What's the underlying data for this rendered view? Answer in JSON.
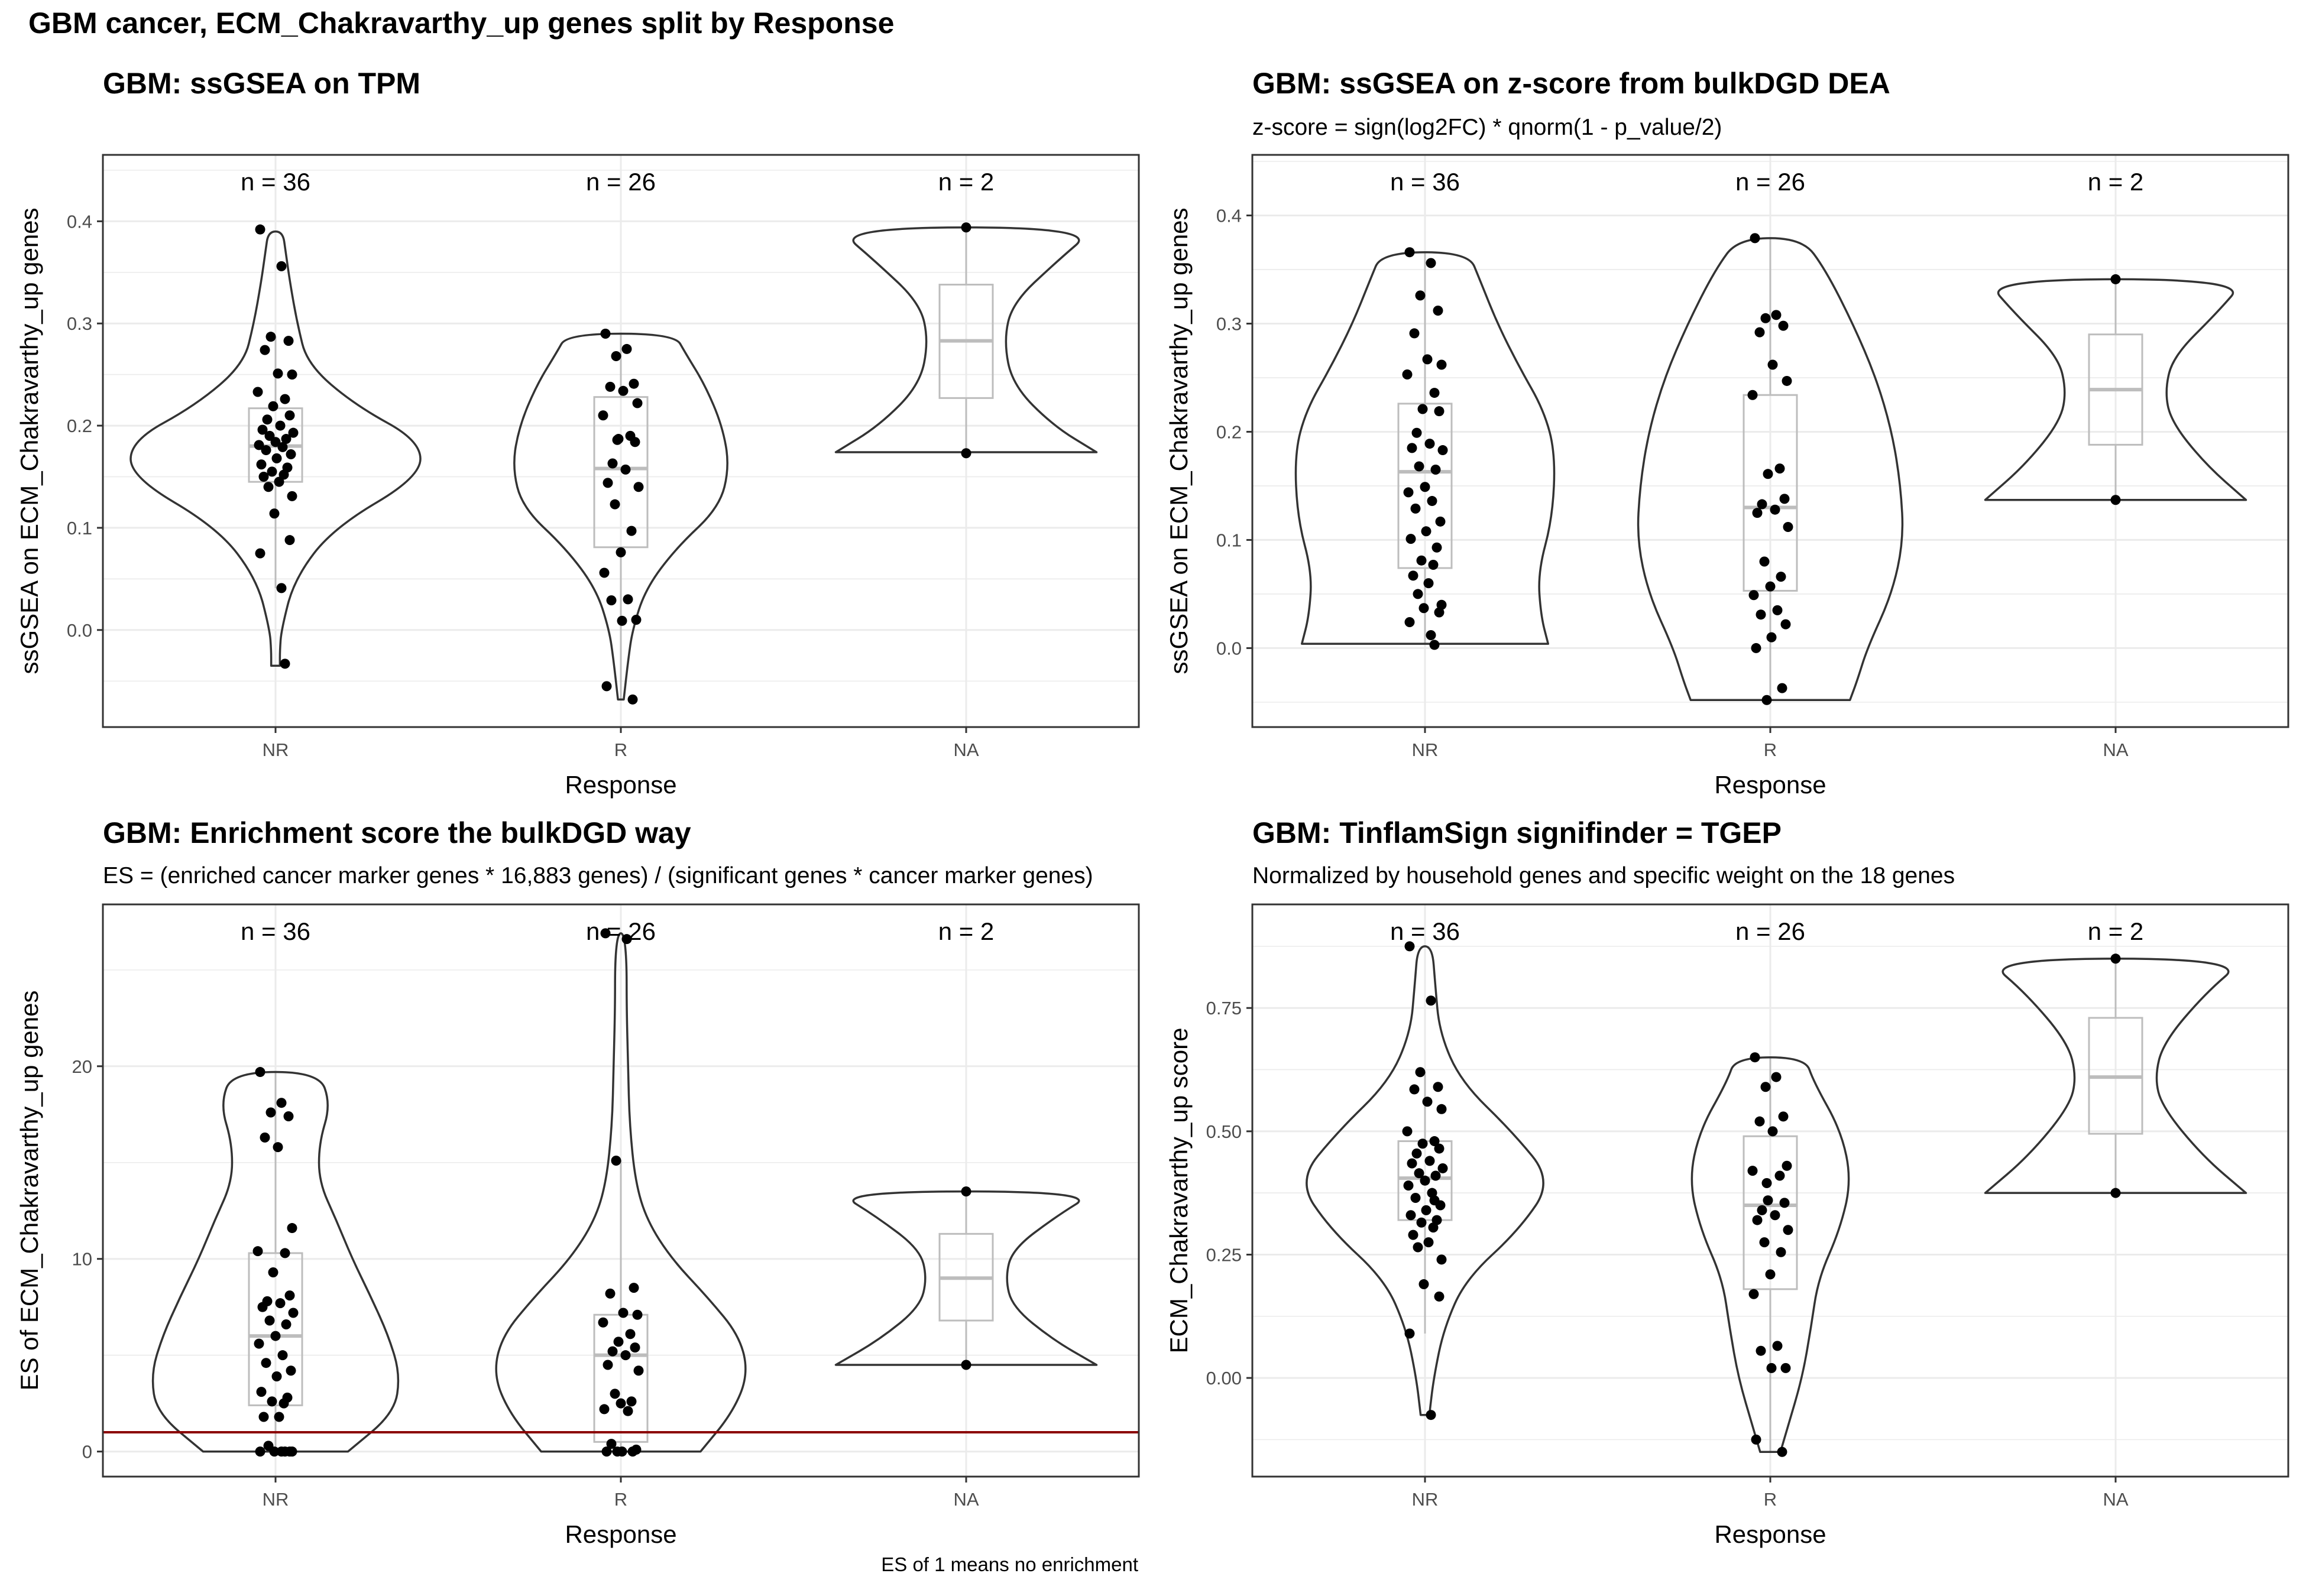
{
  "figure": {
    "title": "GBM cancer, ECM_Chakravarthy_up genes split by Response",
    "footnote": "ES of 1 means no enrichment"
  },
  "colors": {
    "point": "#000000",
    "violin": "#333333",
    "box": "#bdbdbd",
    "panel_border": "#333333",
    "grid_major": "#ebebeb",
    "reference_line": "#8b0000"
  },
  "chart_data": [
    {
      "type": "violin",
      "title": "GBM: ssGSEA on TPM",
      "subtitle": "",
      "xlabel": "Response",
      "ylabel": "ssGSEA on ECM_Chakravarthy_up genes",
      "categories": [
        "NR",
        "R",
        "NA"
      ],
      "counts": [
        "n = 36",
        "n = 26",
        "n = 2"
      ],
      "ylim": [
        -0.095,
        0.465
      ],
      "yticks": [
        0.0,
        0.1,
        0.2,
        0.3,
        0.4
      ],
      "ytick_labels": [
        "0.0",
        "0.1",
        "0.2",
        "0.3",
        "0.4"
      ],
      "grid": true,
      "box": [
        {
          "q1": 0.145,
          "median": 0.18,
          "q3": 0.217
        },
        {
          "q1": 0.081,
          "median": 0.158,
          "q3": 0.228
        },
        {
          "q1": 0.227,
          "median": 0.283,
          "q3": 0.338
        }
      ],
      "points": [
        [
          0.392,
          0.356,
          0.287,
          0.283,
          0.274,
          0.251,
          0.25,
          0.233,
          0.226,
          0.219,
          0.21,
          0.206,
          0.2,
          0.196,
          0.193,
          0.19,
          0.187,
          0.184,
          0.181,
          0.179,
          0.176,
          0.172,
          0.168,
          0.162,
          0.159,
          0.155,
          0.152,
          0.15,
          0.145,
          0.14,
          0.131,
          0.114,
          0.088,
          0.075,
          0.041,
          -0.033
        ],
        [
          0.29,
          0.275,
          0.268,
          0.241,
          0.238,
          0.234,
          0.222,
          0.21,
          0.19,
          0.187,
          0.184,
          0.163,
          0.157,
          0.144,
          0.14,
          0.123,
          0.097,
          0.076,
          0.056,
          0.03,
          0.029,
          0.01,
          0.009,
          -0.055,
          -0.068,
          0.186
        ],
        [
          0.394,
          0.173
        ]
      ],
      "violin_width": [
        [
          [
            -0.035,
            0.03
          ],
          [
            -0.02,
            0.03
          ],
          [
            0.0,
            0.04
          ],
          [
            0.05,
            0.13
          ],
          [
            0.1,
            0.4
          ],
          [
            0.15,
            1.0
          ],
          [
            0.185,
            1.0
          ],
          [
            0.22,
            0.55
          ],
          [
            0.26,
            0.22
          ],
          [
            0.3,
            0.15
          ],
          [
            0.34,
            0.1
          ],
          [
            0.37,
            0.07
          ],
          [
            0.39,
            0.05
          ]
        ],
        [
          [
            -0.068,
            0.02
          ],
          [
            -0.03,
            0.05
          ],
          [
            0.0,
            0.08
          ],
          [
            0.04,
            0.17
          ],
          [
            0.08,
            0.38
          ],
          [
            0.12,
            0.68
          ],
          [
            0.16,
            0.75
          ],
          [
            0.2,
            0.7
          ],
          [
            0.24,
            0.58
          ],
          [
            0.27,
            0.45
          ],
          [
            0.29,
            0.37
          ]
        ],
        [
          [
            0.174,
            0.9
          ],
          [
            0.2,
            0.6
          ],
          [
            0.24,
            0.32
          ],
          [
            0.283,
            0.26
          ],
          [
            0.32,
            0.32
          ],
          [
            0.36,
            0.62
          ],
          [
            0.394,
            0.9
          ]
        ]
      ],
      "reference_line": null
    },
    {
      "type": "violin",
      "title": "GBM: ssGSEA on z-score from bulkDGD DEA",
      "subtitle": "z-score = sign(log2FC) * qnorm(1 - p_value/2)",
      "xlabel": "Response",
      "ylabel": "ssGSEA on ECM_Chakravarthy_up genes",
      "categories": [
        "NR",
        "R",
        "NA"
      ],
      "counts": [
        "n = 36",
        "n = 26",
        "n = 2"
      ],
      "ylim": [
        -0.073,
        0.456
      ],
      "yticks": [
        0.0,
        0.1,
        0.2,
        0.3,
        0.4
      ],
      "ytick_labels": [
        "0.0",
        "0.1",
        "0.2",
        "0.3",
        "0.4"
      ],
      "grid": true,
      "box": [
        {
          "q1": 0.074,
          "median": 0.163,
          "q3": 0.226
        },
        {
          "q1": 0.053,
          "median": 0.13,
          "q3": 0.234
        },
        {
          "q1": 0.188,
          "median": 0.239,
          "q3": 0.29
        }
      ],
      "points": [
        [
          0.366,
          0.356,
          0.326,
          0.312,
          0.291,
          0.267,
          0.262,
          0.253,
          0.236,
          0.221,
          0.219,
          0.199,
          0.189,
          0.185,
          0.183,
          0.168,
          0.165,
          0.149,
          0.144,
          0.136,
          0.129,
          0.117,
          0.108,
          0.101,
          0.093,
          0.081,
          0.077,
          0.067,
          0.06,
          0.05,
          0.04,
          0.037,
          0.033,
          0.024,
          0.012,
          0.003
        ],
        [
          0.379,
          0.308,
          0.305,
          0.298,
          0.292,
          0.262,
          0.247,
          0.234,
          0.166,
          0.161,
          0.138,
          0.133,
          0.128,
          0.125,
          0.112,
          0.08,
          0.066,
          0.057,
          0.049,
          0.035,
          0.031,
          0.022,
          0.01,
          0.0,
          -0.037,
          -0.048
        ],
        [
          0.341,
          0.137
        ]
      ],
      "violin_width": [
        [
          [
            0.004,
            0.85
          ],
          [
            0.03,
            0.8
          ],
          [
            0.07,
            0.78
          ],
          [
            0.12,
            0.88
          ],
          [
            0.18,
            0.9
          ],
          [
            0.22,
            0.82
          ],
          [
            0.26,
            0.65
          ],
          [
            0.3,
            0.5
          ],
          [
            0.34,
            0.38
          ],
          [
            0.366,
            0.3
          ]
        ],
        [
          [
            -0.048,
            0.55
          ],
          [
            -0.03,
            0.6
          ],
          [
            0.0,
            0.67
          ],
          [
            0.05,
            0.84
          ],
          [
            0.1,
            0.92
          ],
          [
            0.15,
            0.9
          ],
          [
            0.2,
            0.84
          ],
          [
            0.25,
            0.73
          ],
          [
            0.3,
            0.57
          ],
          [
            0.35,
            0.38
          ],
          [
            0.379,
            0.22
          ]
        ],
        [
          [
            0.137,
            0.9
          ],
          [
            0.17,
            0.62
          ],
          [
            0.21,
            0.38
          ],
          [
            0.239,
            0.34
          ],
          [
            0.27,
            0.4
          ],
          [
            0.31,
            0.7
          ],
          [
            0.341,
            0.9
          ]
        ]
      ],
      "reference_line": null
    },
    {
      "type": "violin",
      "title": "GBM: Enrichment score the bulkDGD way",
      "subtitle": "ES = (enriched cancer marker genes * 16,883 genes) / (significant genes * cancer marker genes)",
      "xlabel": "Response",
      "ylabel": "ES of ECM_Chakravarthy_up genes",
      "categories": [
        "NR",
        "R",
        "NA"
      ],
      "counts": [
        "n = 36",
        "n = 26",
        "n = 2"
      ],
      "ylim": [
        -1.3,
        28.4
      ],
      "yticks": [
        0,
        10,
        20
      ],
      "ytick_labels": [
        "0",
        "10",
        "20"
      ],
      "grid": true,
      "box": [
        {
          "q1": 2.4,
          "median": 6.0,
          "q3": 10.3
        },
        {
          "q1": 0.5,
          "median": 5.0,
          "q3": 7.1
        },
        {
          "q1": 6.8,
          "median": 9.0,
          "q3": 11.3
        }
      ],
      "points": [
        [
          19.7,
          18.1,
          17.6,
          17.4,
          16.3,
          15.8,
          11.6,
          10.4,
          10.3,
          9.3,
          8.1,
          7.8,
          7.7,
          7.5,
          7.2,
          6.8,
          6.6,
          6.0,
          5.6,
          5.0,
          4.6,
          4.2,
          3.9,
          3.1,
          2.8,
          2.6,
          2.5,
          1.8,
          1.8,
          0.3,
          0.0,
          0.0,
          0.0,
          0.0,
          0.0,
          0.0
        ],
        [
          26.9,
          26.6,
          15.1,
          8.5,
          8.2,
          7.2,
          7.1,
          6.7,
          6.1,
          5.7,
          5.4,
          5.2,
          5.0,
          4.5,
          4.2,
          3.0,
          2.6,
          2.5,
          2.2,
          2.1,
          0.4,
          0.1,
          0.0,
          0.0,
          0.0,
          0.0
        ],
        [
          13.5,
          4.5
        ]
      ],
      "violin_width": [
        [
          [
            0.0,
            0.5
          ],
          [
            2.0,
            0.82
          ],
          [
            4.0,
            0.86
          ],
          [
            6.0,
            0.78
          ],
          [
            8.0,
            0.66
          ],
          [
            10.0,
            0.53
          ],
          [
            12.0,
            0.42
          ],
          [
            14.0,
            0.3
          ],
          [
            16.0,
            0.3
          ],
          [
            18.0,
            0.38
          ],
          [
            19.7,
            0.3
          ]
        ],
        [
          [
            0.0,
            0.55
          ],
          [
            2.0,
            0.77
          ],
          [
            4.0,
            0.88
          ],
          [
            6.0,
            0.82
          ],
          [
            8.0,
            0.6
          ],
          [
            10.0,
            0.35
          ],
          [
            12.0,
            0.18
          ],
          [
            14.0,
            0.1
          ],
          [
            17.0,
            0.06
          ],
          [
            20.0,
            0.05
          ],
          [
            23.0,
            0.04
          ],
          [
            25.5,
            0.04
          ],
          [
            26.9,
            0.02
          ]
        ],
        [
          [
            4.5,
            0.9
          ],
          [
            5.8,
            0.6
          ],
          [
            7.5,
            0.32
          ],
          [
            9.0,
            0.27
          ],
          [
            10.5,
            0.32
          ],
          [
            12.2,
            0.62
          ],
          [
            13.5,
            0.9
          ]
        ]
      ],
      "reference_line": {
        "y": 1
      }
    },
    {
      "type": "violin",
      "title": "GBM: TinflamSign signifinder = TGEP",
      "subtitle": "Normalized by household genes and specific weight on the 18 genes",
      "xlabel": "Response",
      "ylabel": "ECM_Chakravarthy_up score",
      "categories": [
        "NR",
        "R",
        "NA"
      ],
      "counts": [
        "n = 36",
        "n = 26",
        "n = 2"
      ],
      "ylim": [
        -0.2,
        0.96
      ],
      "yticks": [
        0.0,
        0.25,
        0.5,
        0.75
      ],
      "ytick_labels": [
        "0.00",
        "0.25",
        "0.50",
        "0.75"
      ],
      "grid": true,
      "box": [
        {
          "q1": 0.32,
          "median": 0.405,
          "q3": 0.48
        },
        {
          "q1": 0.18,
          "median": 0.35,
          "q3": 0.49
        },
        {
          "q1": 0.495,
          "median": 0.61,
          "q3": 0.73
        }
      ],
      "points": [
        [
          0.875,
          0.765,
          0.62,
          0.59,
          0.585,
          0.56,
          0.545,
          0.5,
          0.48,
          0.475,
          0.465,
          0.455,
          0.44,
          0.435,
          0.425,
          0.415,
          0.41,
          0.4,
          0.39,
          0.375,
          0.365,
          0.35,
          0.34,
          0.33,
          0.32,
          0.315,
          0.305,
          0.29,
          0.275,
          0.265,
          0.24,
          0.19,
          0.165,
          0.09,
          -0.075,
          0.36
        ],
        [
          0.65,
          0.61,
          0.59,
          0.53,
          0.52,
          0.5,
          0.43,
          0.42,
          0.41,
          0.36,
          0.355,
          0.34,
          0.33,
          0.32,
          0.3,
          0.275,
          0.255,
          0.21,
          0.17,
          0.065,
          0.055,
          0.02,
          0.02,
          -0.125,
          -0.15,
          0.395
        ],
        [
          0.85,
          0.375
        ]
      ],
      "violin_width": [
        [
          [
            -0.075,
            0.03
          ],
          [
            0.0,
            0.06
          ],
          [
            0.1,
            0.13
          ],
          [
            0.2,
            0.28
          ],
          [
            0.3,
            0.65
          ],
          [
            0.4,
            0.88
          ],
          [
            0.5,
            0.6
          ],
          [
            0.6,
            0.25
          ],
          [
            0.7,
            0.1
          ],
          [
            0.8,
            0.07
          ],
          [
            0.875,
            0.05
          ]
        ],
        [
          [
            -0.15,
            0.07
          ],
          [
            -0.1,
            0.12
          ],
          [
            0.0,
            0.22
          ],
          [
            0.1,
            0.28
          ],
          [
            0.2,
            0.33
          ],
          [
            0.3,
            0.48
          ],
          [
            0.4,
            0.56
          ],
          [
            0.5,
            0.49
          ],
          [
            0.6,
            0.3
          ],
          [
            0.65,
            0.24
          ]
        ],
        [
          [
            0.375,
            0.9
          ],
          [
            0.45,
            0.6
          ],
          [
            0.55,
            0.32
          ],
          [
            0.61,
            0.27
          ],
          [
            0.68,
            0.33
          ],
          [
            0.78,
            0.62
          ],
          [
            0.85,
            0.9
          ]
        ]
      ],
      "reference_line": null
    }
  ]
}
